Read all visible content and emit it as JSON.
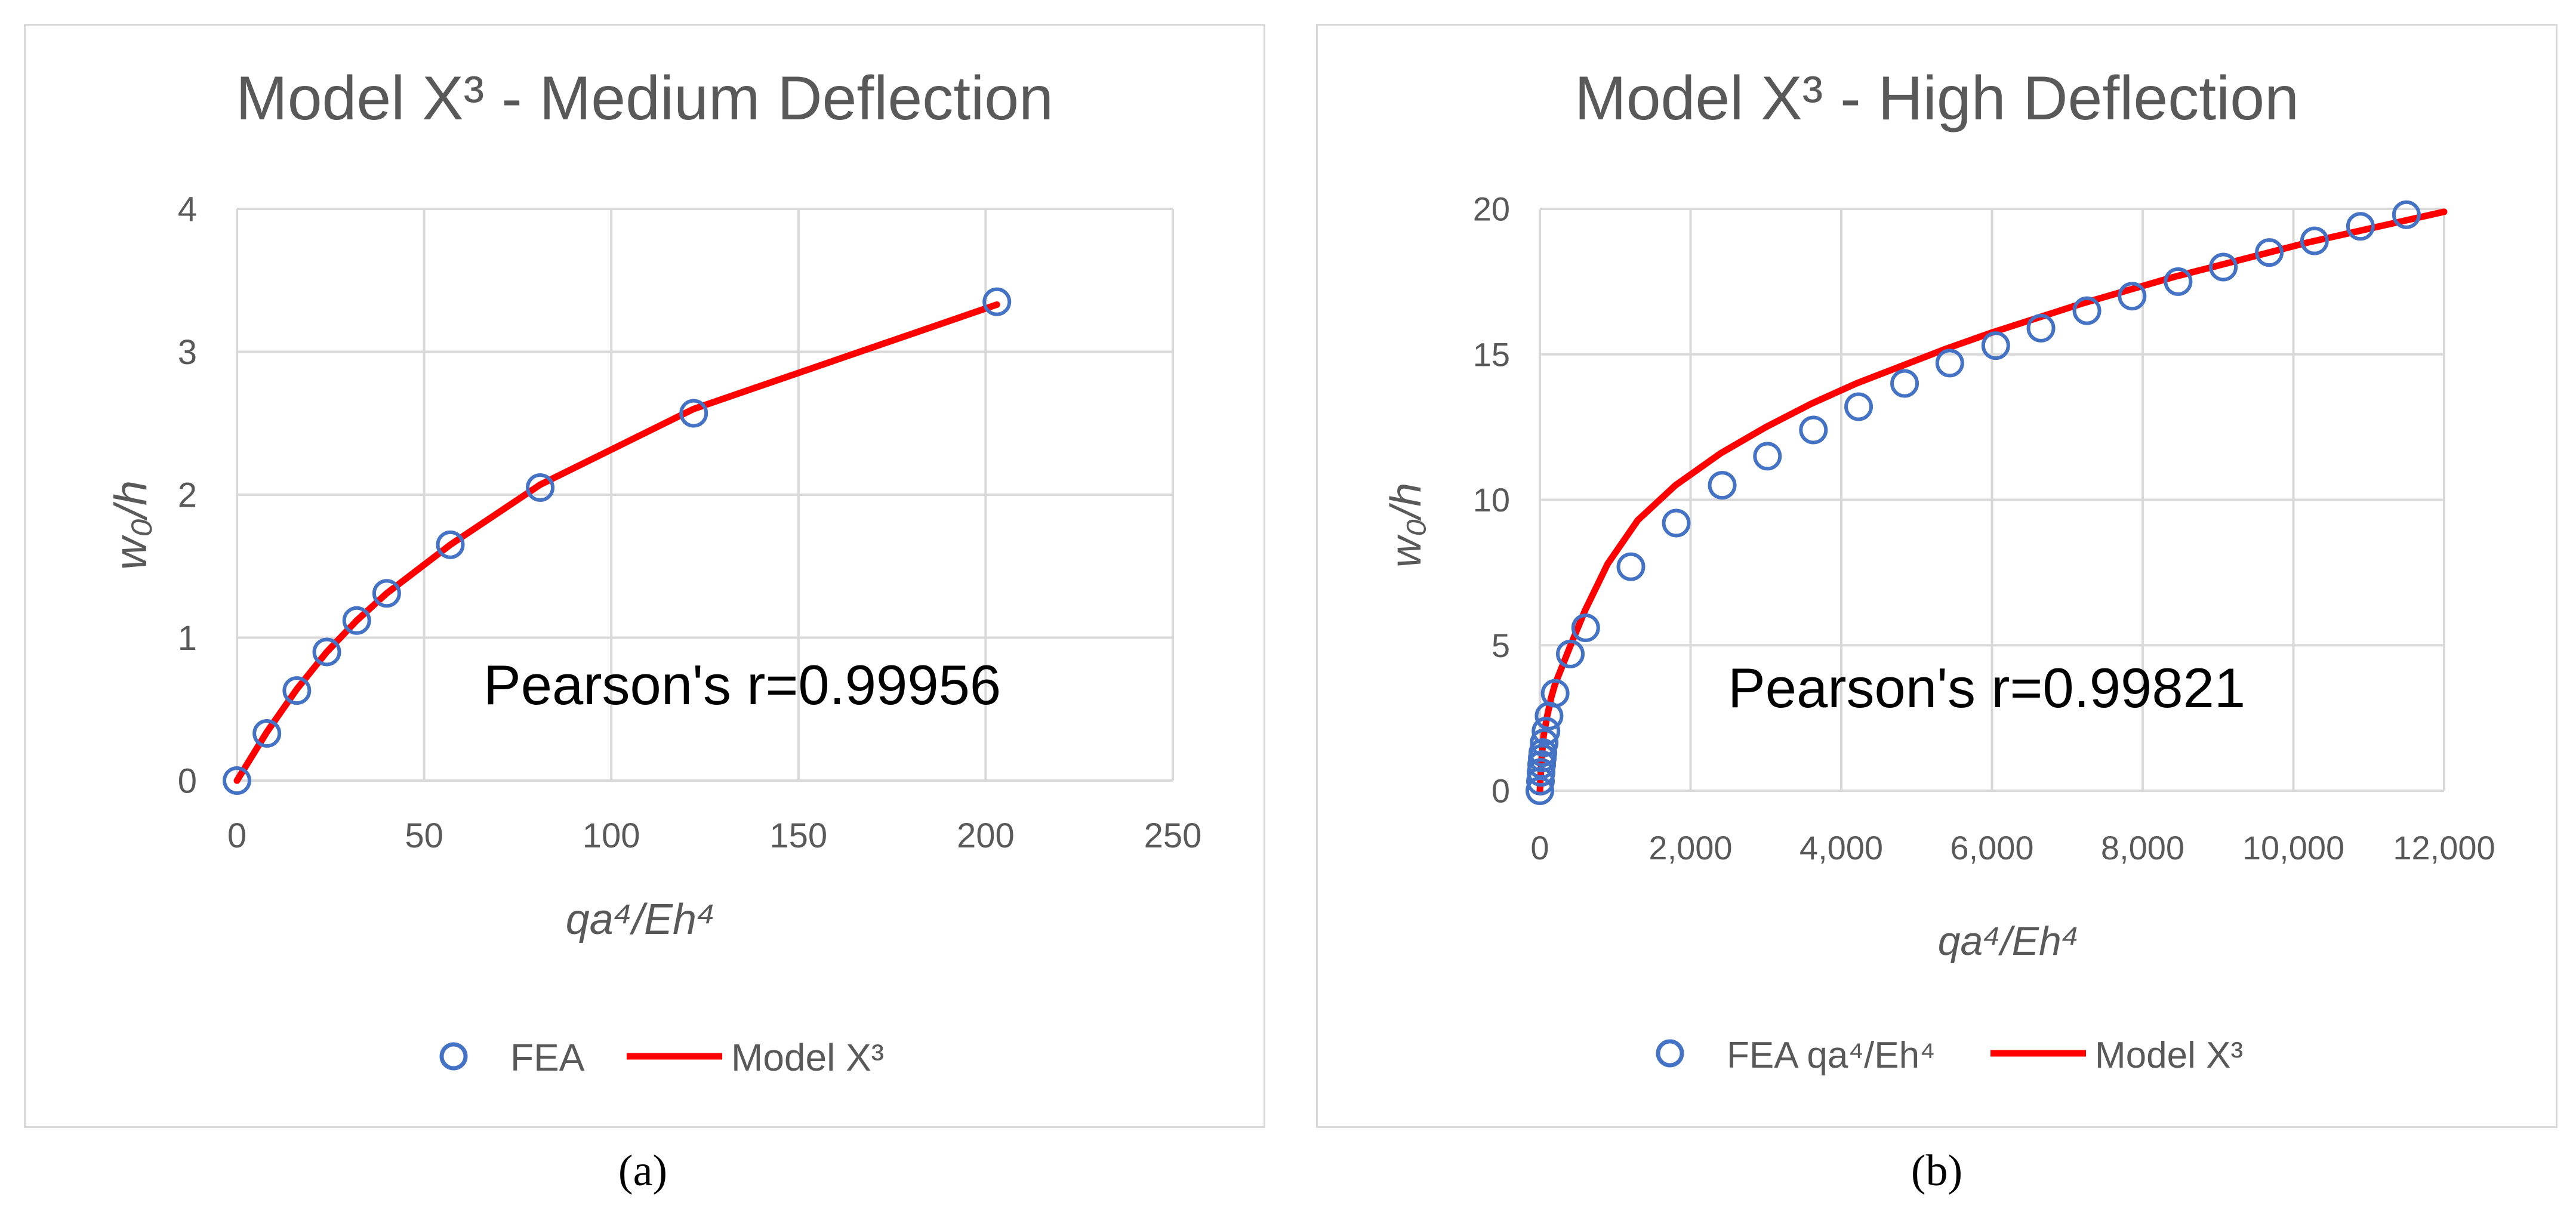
{
  "chart_data": [
    {
      "type": "scatter",
      "title": "Model X³ - Medium Deflection",
      "xlabel": "qa⁴/Eh⁴",
      "ylabel": "w₀/h",
      "xlim": [
        0,
        250
      ],
      "ylim": [
        0,
        4
      ],
      "x_ticks": [
        0,
        50,
        100,
        150,
        200,
        250
      ],
      "y_ticks": [
        0,
        1,
        2,
        3,
        4
      ],
      "x_tick_labels": [
        "0",
        "50",
        "100",
        "150",
        "200",
        "250"
      ],
      "y_tick_labels": [
        "0",
        "1",
        "2",
        "3",
        "4"
      ],
      "grid": true,
      "annotation": "Pearson's r=0.99956",
      "legend_position": "bottom",
      "series": [
        {
          "name": "FEA",
          "kind": "marker",
          "color": "#4472c4",
          "x": [
            0,
            8,
            16,
            24,
            32,
            40,
            57,
            81,
            122,
            203
          ],
          "y": [
            0,
            0.33,
            0.63,
            0.9,
            1.12,
            1.31,
            1.65,
            2.05,
            2.57,
            3.35
          ]
        },
        {
          "name": "Model X³",
          "kind": "line",
          "color": "#ff0000",
          "x": [
            0,
            8,
            16,
            24,
            32,
            40,
            57,
            81,
            122,
            203
          ],
          "y": [
            0,
            0.34,
            0.64,
            0.9,
            1.12,
            1.31,
            1.65,
            2.07,
            2.6,
            3.33
          ]
        }
      ]
    },
    {
      "type": "scatter",
      "title": "Model X³ - High Deflection",
      "xlabel": "qa⁴/Eh⁴",
      "ylabel": "w₀/h",
      "xlim": [
        0,
        12000
      ],
      "ylim": [
        0,
        20
      ],
      "x_ticks": [
        0,
        2000,
        4000,
        6000,
        8000,
        10000,
        12000
      ],
      "y_ticks": [
        0,
        5,
        10,
        15,
        20
      ],
      "x_tick_labels": [
        "0",
        "2,000",
        "4,000",
        "6,000",
        "8,000",
        "10,000",
        "12,000"
      ],
      "y_tick_labels": [
        "0",
        "5",
        "10",
        "15",
        "20"
      ],
      "grid": true,
      "annotation": "Pearson's r=0.99821",
      "legend_position": "bottom",
      "series": [
        {
          "name": "FEA qa⁴/Eh⁴",
          "kind": "marker",
          "color": "#4472c4",
          "x": [
            0,
            8,
            16,
            24,
            32,
            40,
            57,
            81,
            122,
            203,
            404,
            608,
            1208,
            1810,
            2420,
            3020,
            3630,
            4230,
            4840,
            5440,
            6050,
            6650,
            7260,
            7860,
            8470,
            9070,
            9680,
            10280,
            10890,
            11500
          ],
          "y": [
            0,
            0.33,
            0.63,
            0.9,
            1.12,
            1.31,
            1.65,
            2.05,
            2.57,
            3.35,
            4.7,
            5.6,
            7.7,
            9.2,
            10.5,
            11.5,
            12.4,
            13.2,
            14.0,
            14.7,
            15.3,
            15.9,
            16.5,
            17.0,
            17.5,
            18.0,
            18.5,
            18.9,
            19.4,
            19.8
          ]
        },
        {
          "name": "Model X³",
          "kind": "line",
          "color": "#ff0000",
          "x": [
            0,
            20,
            50,
            100,
            150,
            200,
            300,
            400,
            600,
            900,
            1300,
            1800,
            2400,
            3000,
            3600,
            4200,
            4800,
            5400,
            6000,
            6600,
            7200,
            7800,
            8400,
            9000,
            9600,
            10200,
            10800,
            11400,
            12000
          ],
          "y": [
            0,
            1.0,
            1.9,
            2.6,
            3.2,
            3.65,
            4.3,
            4.95,
            6.2,
            7.8,
            9.3,
            10.5,
            11.6,
            12.5,
            13.3,
            14.0,
            14.6,
            15.2,
            15.75,
            16.25,
            16.75,
            17.2,
            17.65,
            18.05,
            18.45,
            18.85,
            19.2,
            19.55,
            19.9
          ]
        }
      ]
    }
  ],
  "captions": [
    "(a)",
    "(b)"
  ],
  "colors": {
    "marker": "#4472c4",
    "line": "#ff0000",
    "grid": "#d9d9d9",
    "text": "#595959",
    "frame": "#d9d9d9"
  }
}
